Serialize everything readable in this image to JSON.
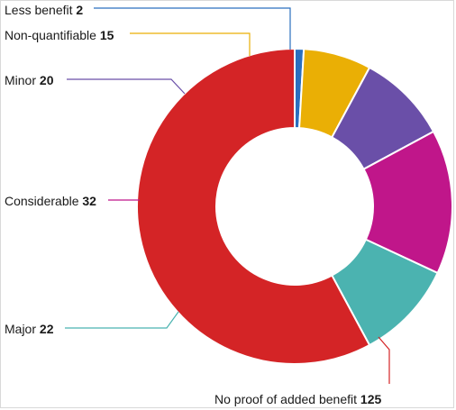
{
  "chart_data": {
    "type": "pie",
    "style": "donut",
    "categories": [
      "Less benefit",
      "Non-quantifiable",
      "Minor",
      "Considerable",
      "Major",
      "No proof of added benefit"
    ],
    "values": [
      2,
      15,
      20,
      32,
      22,
      125
    ],
    "colors": [
      "#2a6fbf",
      "#eaaf05",
      "#6a4fa8",
      "#c0168a",
      "#4bb3b0",
      "#d42426"
    ],
    "legend": "none"
  }
}
